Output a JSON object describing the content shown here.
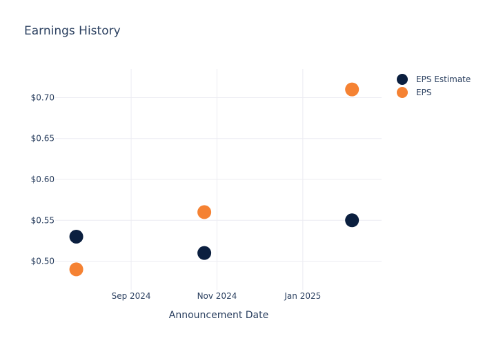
{
  "chart_data": {
    "type": "scatter",
    "title": "Earnings History",
    "xlabel": "Announcement Date",
    "ylabel": "",
    "x_ticks": [
      {
        "label": "Sep 2024",
        "date": "2024-09-01"
      },
      {
        "label": "Nov 2024",
        "date": "2024-11-01"
      },
      {
        "label": "Jan 2025",
        "date": "2025-01-01"
      }
    ],
    "y_ticks": [
      {
        "label": "$0.50",
        "value": 0.5
      },
      {
        "label": "$0.55",
        "value": 0.55
      },
      {
        "label": "$0.60",
        "value": 0.6
      },
      {
        "label": "$0.65",
        "value": 0.65
      },
      {
        "label": "$0.70",
        "value": 0.7
      }
    ],
    "xlim": [
      "2024-07-09",
      "2025-02-26"
    ],
    "ylim": [
      0.465,
      0.735
    ],
    "grid": true,
    "legend_position": "top-right",
    "series": [
      {
        "name": "EPS Estimate",
        "color": "#0b1f3f",
        "points": [
          {
            "x": "2024-07-24",
            "y": 0.53
          },
          {
            "x": "2024-10-23",
            "y": 0.51
          },
          {
            "x": "2025-02-05",
            "y": 0.55
          }
        ]
      },
      {
        "name": "EPS",
        "color": "#f58233",
        "points": [
          {
            "x": "2024-07-24",
            "y": 0.49
          },
          {
            "x": "2024-10-23",
            "y": 0.56
          },
          {
            "x": "2025-02-05",
            "y": 0.71
          }
        ]
      }
    ]
  }
}
